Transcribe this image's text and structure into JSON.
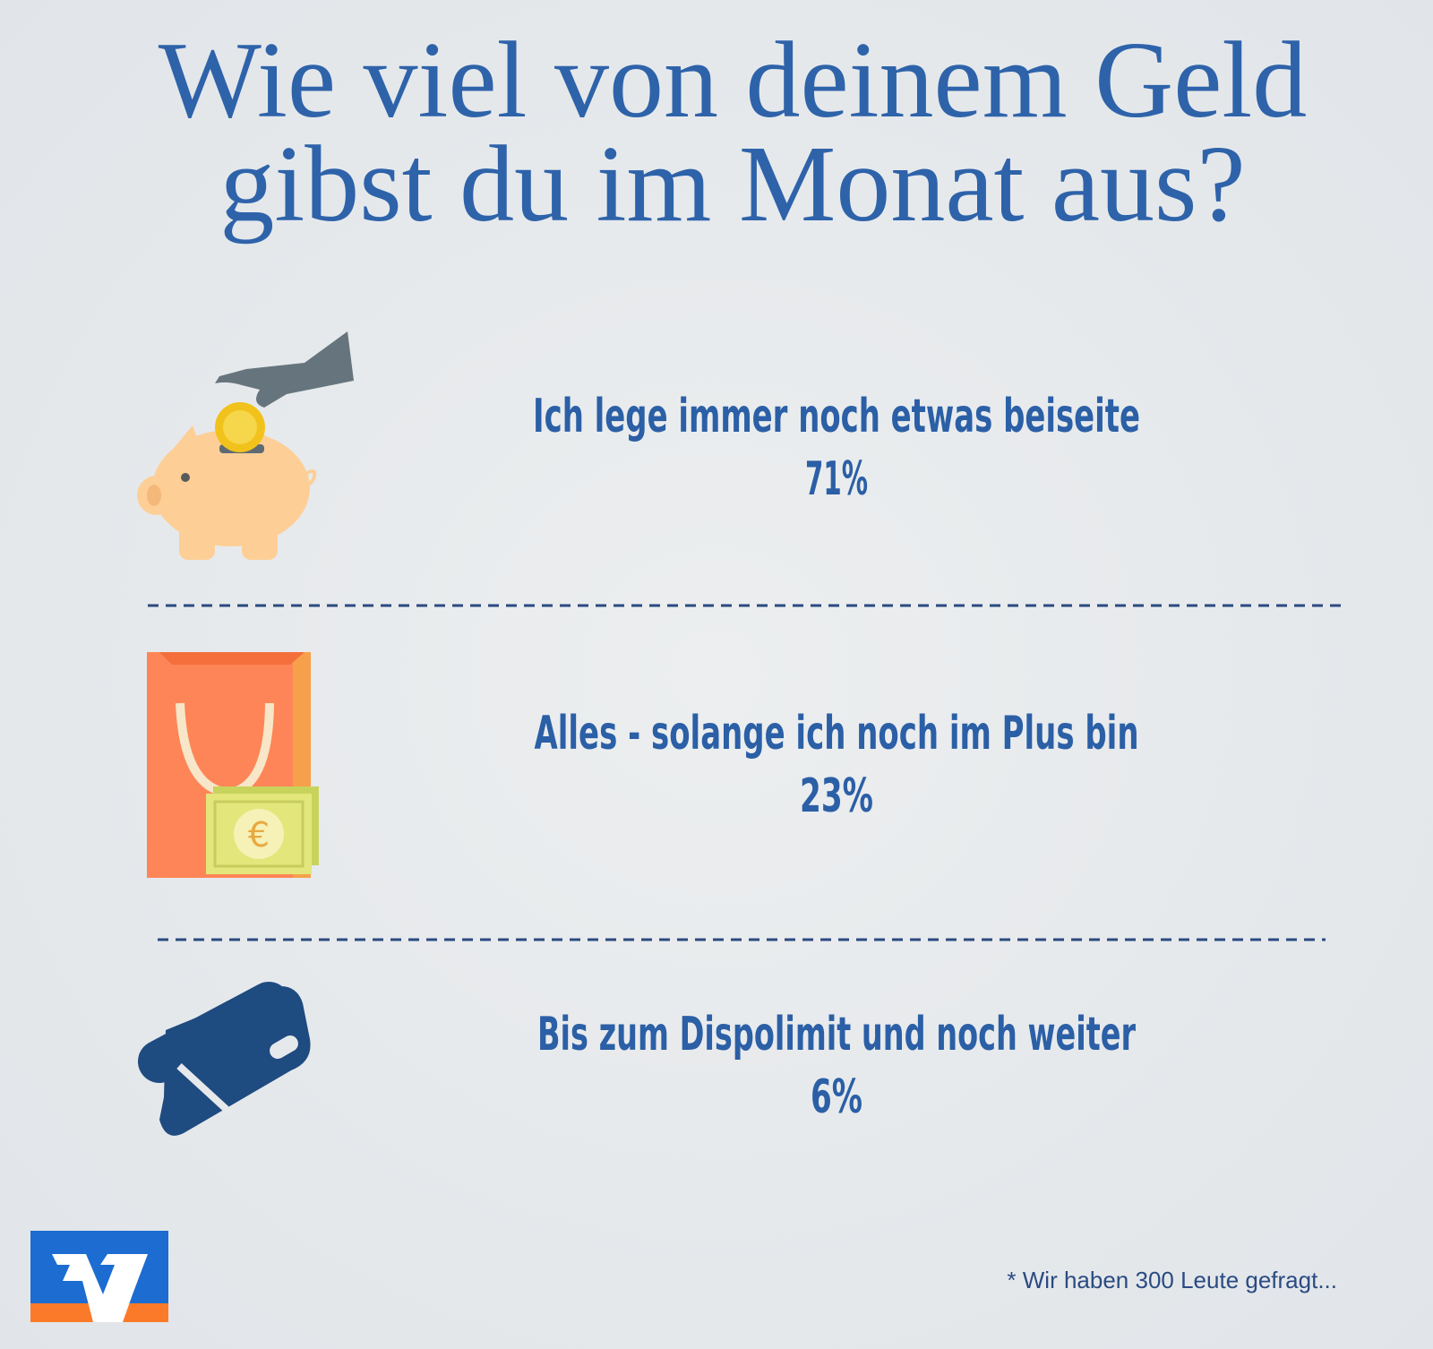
{
  "title": [
    "Wie viel von deinem Geld",
    "gibst du im Monat aus?"
  ],
  "items": [
    {
      "label": "Ich lege immer noch etwas beiseite",
      "value": "71%"
    },
    {
      "label": "Alles - solange ich noch im Plus bin",
      "value": "23%"
    },
    {
      "label": "Bis zum Dispolimit und noch weiter",
      "value": "6%"
    }
  ],
  "footnote": "* Wir haben 300 Leute gefragt..."
}
